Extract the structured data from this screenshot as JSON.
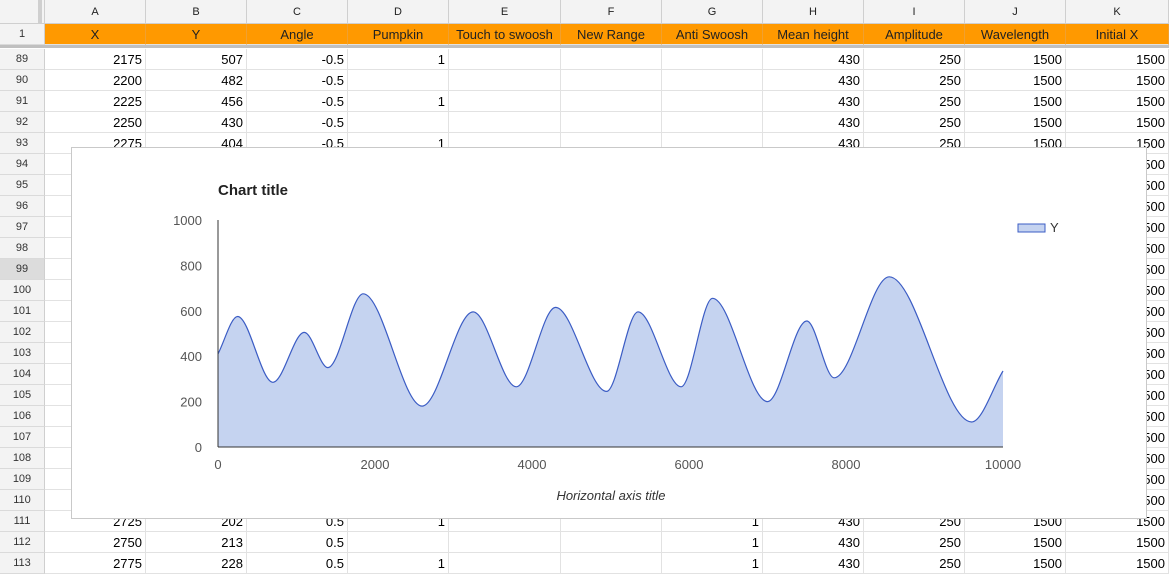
{
  "columns": [
    "A",
    "B",
    "C",
    "D",
    "E",
    "F",
    "G",
    "H",
    "I",
    "J",
    "K"
  ],
  "header_row": {
    "row_number": "1",
    "cells": [
      "X",
      "Y",
      "Angle",
      "Pumpkin",
      "Touch to swoosh",
      "New Range",
      "Anti Swoosh",
      "Mean height",
      "Amplitude",
      "Wavelength",
      "Initial X"
    ]
  },
  "selected_row": "99",
  "rows": [
    {
      "n": "89",
      "cells": [
        "2175",
        "507",
        "-0.5",
        "1",
        "",
        "",
        "",
        "430",
        "250",
        "1500",
        "1500"
      ]
    },
    {
      "n": "90",
      "cells": [
        "2200",
        "482",
        "-0.5",
        "",
        "",
        "",
        "",
        "430",
        "250",
        "1500",
        "1500"
      ]
    },
    {
      "n": "91",
      "cells": [
        "2225",
        "456",
        "-0.5",
        "1",
        "",
        "",
        "",
        "430",
        "250",
        "1500",
        "1500"
      ]
    },
    {
      "n": "92",
      "cells": [
        "2250",
        "430",
        "-0.5",
        "",
        "",
        "",
        "",
        "430",
        "250",
        "1500",
        "1500"
      ]
    },
    {
      "n": "93",
      "cells": [
        "2275",
        "404",
        "-0.5",
        "1",
        "",
        "",
        "",
        "430",
        "250",
        "1500",
        "1500"
      ]
    },
    {
      "n": "94",
      "cells": [
        "",
        "",
        "",
        "",
        "",
        "",
        "",
        "",
        "",
        "",
        "1500"
      ]
    },
    {
      "n": "95",
      "cells": [
        "",
        "",
        "",
        "",
        "",
        "",
        "",
        "",
        "",
        "",
        "1500"
      ]
    },
    {
      "n": "96",
      "cells": [
        "",
        "",
        "",
        "",
        "",
        "",
        "",
        "",
        "",
        "",
        "1500"
      ]
    },
    {
      "n": "97",
      "cells": [
        "",
        "",
        "",
        "",
        "",
        "",
        "",
        "",
        "",
        "",
        "1500"
      ]
    },
    {
      "n": "98",
      "cells": [
        "",
        "",
        "",
        "",
        "",
        "",
        "",
        "",
        "",
        "",
        "1500"
      ]
    },
    {
      "n": "99",
      "cells": [
        "",
        "",
        "",
        "",
        "",
        "",
        "",
        "",
        "",
        "",
        "1500"
      ]
    },
    {
      "n": "100",
      "cells": [
        "",
        "",
        "",
        "",
        "",
        "",
        "",
        "",
        "",
        "",
        "1500"
      ]
    },
    {
      "n": "101",
      "cells": [
        "",
        "",
        "",
        "",
        "",
        "",
        "",
        "",
        "",
        "",
        "1500"
      ]
    },
    {
      "n": "102",
      "cells": [
        "",
        "",
        "",
        "",
        "",
        "",
        "",
        "",
        "",
        "",
        "1500"
      ]
    },
    {
      "n": "103",
      "cells": [
        "",
        "",
        "",
        "",
        "",
        "",
        "",
        "",
        "",
        "",
        "1500"
      ]
    },
    {
      "n": "104",
      "cells": [
        "",
        "",
        "",
        "",
        "",
        "",
        "",
        "",
        "",
        "",
        "1500"
      ]
    },
    {
      "n": "105",
      "cells": [
        "",
        "",
        "",
        "",
        "",
        "",
        "",
        "",
        "",
        "",
        "1500"
      ]
    },
    {
      "n": "106",
      "cells": [
        "",
        "",
        "",
        "",
        "",
        "",
        "",
        "",
        "",
        "",
        "1500"
      ]
    },
    {
      "n": "107",
      "cells": [
        "",
        "",
        "",
        "",
        "",
        "",
        "",
        "",
        "",
        "",
        "1500"
      ]
    },
    {
      "n": "108",
      "cells": [
        "",
        "",
        "",
        "",
        "",
        "",
        "",
        "",
        "",
        "",
        "1500"
      ]
    },
    {
      "n": "109",
      "cells": [
        "",
        "",
        "",
        "",
        "",
        "",
        "",
        "",
        "",
        "",
        "1500"
      ]
    },
    {
      "n": "110",
      "cells": [
        "",
        "",
        "",
        "",
        "",
        "",
        "",
        "",
        "",
        "",
        "1500"
      ]
    },
    {
      "n": "111",
      "cells": [
        "2725",
        "202",
        "0.5",
        "1",
        "",
        "",
        "1",
        "430",
        "250",
        "1500",
        "1500"
      ]
    },
    {
      "n": "112",
      "cells": [
        "2750",
        "213",
        "0.5",
        "",
        "",
        "",
        "1",
        "430",
        "250",
        "1500",
        "1500"
      ]
    },
    {
      "n": "113",
      "cells": [
        "2775",
        "228",
        "0.5",
        "1",
        "",
        "",
        "1",
        "430",
        "250",
        "1500",
        "1500"
      ]
    }
  ],
  "colors": {
    "header_fill": "#ff9900",
    "series_fill": "#c5d3f0",
    "series_line": "#3b5cc4"
  },
  "chart_data": {
    "type": "area",
    "title": "Chart title",
    "xlabel": "Horizontal axis title",
    "ylabel": "",
    "xlim": [
      0,
      10000
    ],
    "ylim": [
      0,
      1000
    ],
    "x_ticks": [
      0,
      2000,
      4000,
      6000,
      8000,
      10000
    ],
    "y_ticks": [
      0,
      200,
      400,
      600,
      800,
      1000
    ],
    "legend_position": "top-right",
    "series": [
      {
        "name": "Y",
        "x": [
          0,
          250,
          700,
          1100,
          1400,
          1850,
          2600,
          3250,
          3800,
          4300,
          4950,
          5350,
          5900,
          6300,
          7000,
          7500,
          7850,
          8550,
          9600,
          10000
        ],
        "values": [
          410,
          575,
          285,
          505,
          350,
          675,
          180,
          595,
          265,
          615,
          245,
          595,
          265,
          655,
          200,
          555,
          305,
          750,
          110,
          335
        ]
      }
    ]
  }
}
